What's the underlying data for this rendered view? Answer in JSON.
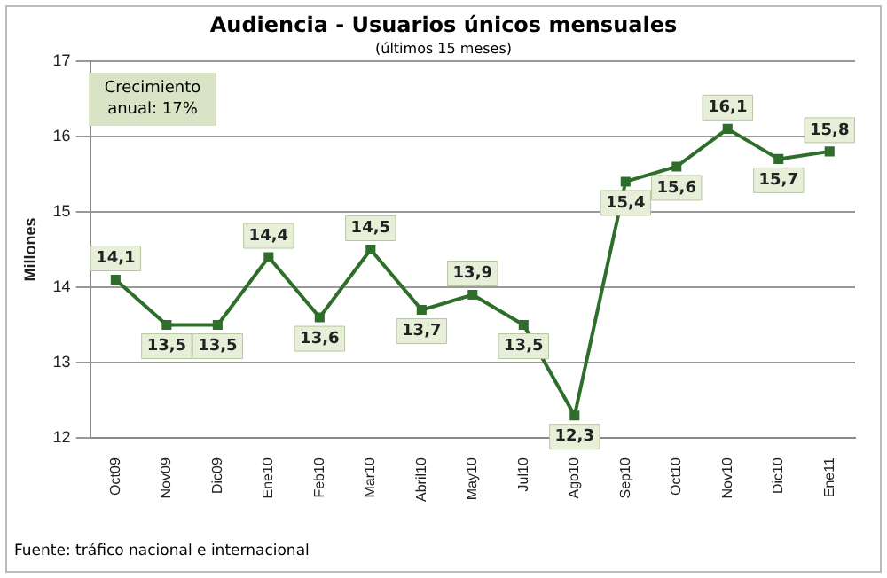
{
  "chart_data": {
    "type": "line",
    "title": "Audiencia - Usuarios únicos mensuales",
    "subtitle": "(últimos 15 meses)",
    "ylabel": "Millones",
    "categories": [
      "Oct09",
      "Nov09",
      "Dic09",
      "Ene10",
      "Feb10",
      "Mar10",
      "Abril10",
      "May10",
      "Jul10",
      "Ago10",
      "Sep10",
      "Oct10",
      "Nov10",
      "Dic10",
      "Ene11"
    ],
    "series": [
      {
        "color": "#2e6e2a",
        "values": [
          14.1,
          13.5,
          13.5,
          14.4,
          13.6,
          14.5,
          13.7,
          13.9,
          13.5,
          12.3,
          15.4,
          15.6,
          16.1,
          15.7,
          15.8
        ],
        "value_labels": [
          "14,1",
          "13,5",
          "13,5",
          "14,4",
          "13,6",
          "14,5",
          "13,7",
          "13,9",
          "13,5",
          "12,3",
          "15,4",
          "15,6",
          "16,1",
          "15,7",
          "15,8"
        ]
      }
    ],
    "ylim": [
      12,
      17
    ],
    "yticks": [
      12,
      13,
      14,
      15,
      16,
      17
    ],
    "grid": "y",
    "legend": false,
    "marker": "square",
    "line_style": "solid",
    "annotations": [
      "Crecimiento anual: 17%",
      "Fuente: tráfico nacional e internacional"
    ]
  }
}
